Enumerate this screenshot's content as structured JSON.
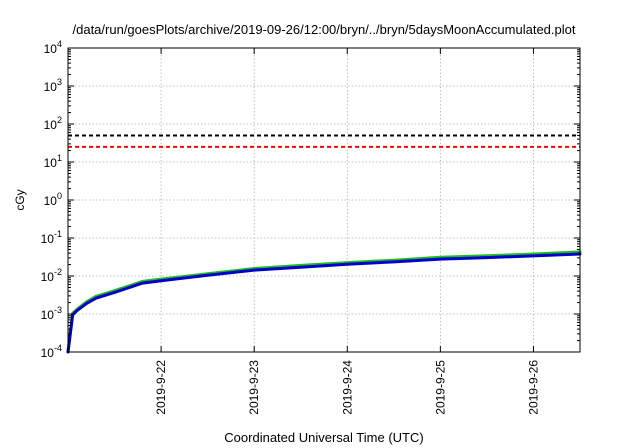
{
  "chart_data": {
    "type": "line",
    "title": "/data/run/goesPlots/archive/2019-09-26/12:00/bryn/../bryn/5daysMoonAccumulated.plot",
    "xlabel": "Coordinated Universal Time (UTC)",
    "ylabel": "cGy",
    "y_scale": "log",
    "ylim": [
      0.0001,
      10000
    ],
    "xlim": [
      "2019-09-21T00:00",
      "2019-09-26T12:00"
    ],
    "grid": true,
    "x_ticks": [
      {
        "date": "2019-09-22T00:00",
        "label": "2019-9-22"
      },
      {
        "date": "2019-09-23T00:00",
        "label": "2019-9-23"
      },
      {
        "date": "2019-09-24T00:00",
        "label": "2019-9-24"
      },
      {
        "date": "2019-09-25T00:00",
        "label": "2019-9-25"
      },
      {
        "date": "2019-09-26T00:00",
        "label": "2019-9-26"
      }
    ],
    "y_ticks": [
      {
        "value": 0.0001,
        "base": "10",
        "exp": "-4"
      },
      {
        "value": 0.001,
        "base": "10",
        "exp": "-3"
      },
      {
        "value": 0.01,
        "base": "10",
        "exp": "-2"
      },
      {
        "value": 0.1,
        "base": "10",
        "exp": "-1"
      },
      {
        "value": 1,
        "base": "10",
        "exp": "0"
      },
      {
        "value": 10,
        "base": "10",
        "exp": "1"
      },
      {
        "value": 100,
        "base": "10",
        "exp": "2"
      },
      {
        "value": 1000,
        "base": "10",
        "exp": "3"
      },
      {
        "value": 10000,
        "base": "10",
        "exp": "4"
      }
    ],
    "reference_lines": [
      {
        "value": 50,
        "color": "#000000",
        "style": "dashed"
      },
      {
        "value": 25,
        "color": "#ff0000",
        "style": "dashed"
      }
    ],
    "series": [
      {
        "color": "#22bb22",
        "points": [
          [
            "2019-09-21T00:00",
            0.0001
          ],
          [
            "2019-09-21T00:36",
            0.00035
          ],
          [
            "2019-09-21T01:12",
            0.00105
          ],
          [
            "2019-09-21T02:24",
            0.00135
          ],
          [
            "2019-09-21T04:48",
            0.0021
          ],
          [
            "2019-09-21T07:12",
            0.0029
          ],
          [
            "2019-09-21T12:00",
            0.0041
          ],
          [
            "2019-09-21T19:12",
            0.0072
          ],
          [
            "2019-09-22T00:00",
            0.0083
          ],
          [
            "2019-09-22T12:00",
            0.0115
          ],
          [
            "2019-09-23T00:00",
            0.0158
          ],
          [
            "2019-09-23T12:00",
            0.019
          ],
          [
            "2019-09-24T00:00",
            0.0225
          ],
          [
            "2019-09-24T12:00",
            0.026
          ],
          [
            "2019-09-25T00:00",
            0.031
          ],
          [
            "2019-09-25T12:00",
            0.034
          ],
          [
            "2019-09-26T00:00",
            0.038
          ],
          [
            "2019-09-26T12:00",
            0.043
          ]
        ]
      },
      {
        "color": "#0000cc",
        "points": [
          [
            "2019-09-21T00:00",
            0.0001
          ],
          [
            "2019-09-21T00:36",
            0.0003
          ],
          [
            "2019-09-21T01:12",
            0.00095
          ],
          [
            "2019-09-21T02:24",
            0.00125
          ],
          [
            "2019-09-21T04:48",
            0.0019
          ],
          [
            "2019-09-21T07:12",
            0.0026
          ],
          [
            "2019-09-21T12:00",
            0.0037
          ],
          [
            "2019-09-21T19:12",
            0.0065
          ],
          [
            "2019-09-22T00:00",
            0.0075
          ],
          [
            "2019-09-22T12:00",
            0.0105
          ],
          [
            "2019-09-23T00:00",
            0.0143
          ],
          [
            "2019-09-23T12:00",
            0.017
          ],
          [
            "2019-09-24T00:00",
            0.0205
          ],
          [
            "2019-09-24T12:00",
            0.0235
          ],
          [
            "2019-09-25T00:00",
            0.0278
          ],
          [
            "2019-09-25T12:00",
            0.0305
          ],
          [
            "2019-09-26T00:00",
            0.0338
          ],
          [
            "2019-09-26T12:00",
            0.038
          ]
        ]
      }
    ]
  }
}
